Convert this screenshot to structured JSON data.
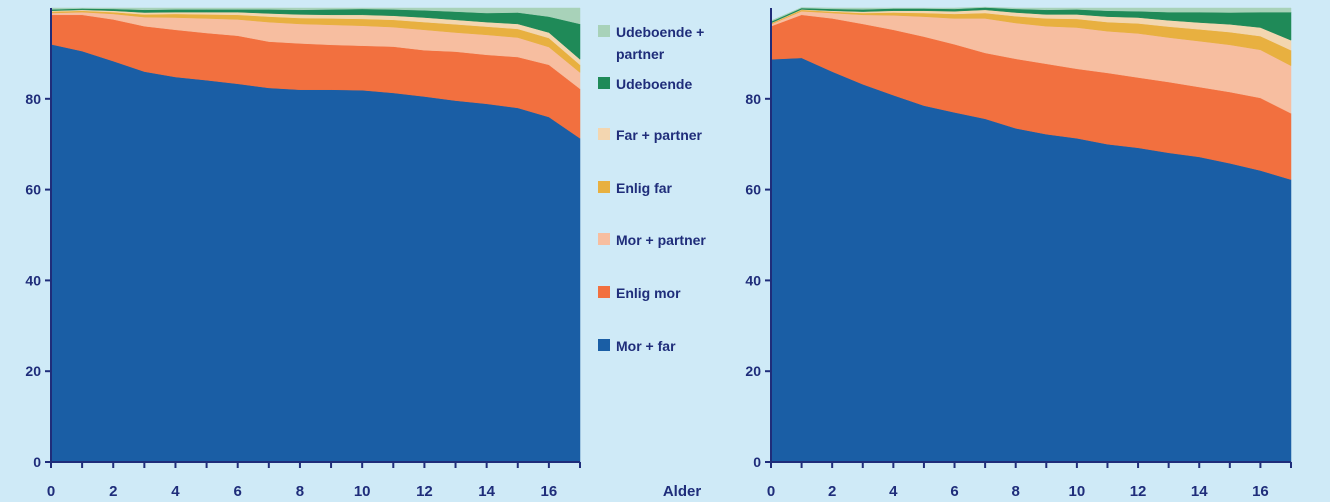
{
  "colors": {
    "background": "#cfeaf7",
    "axis": "#1f2d7a",
    "text": "#1f2d7a"
  },
  "legend": {
    "items": [
      {
        "label": "Udeboende +",
        "label2": "partner",
        "color": "#a8d2b9"
      },
      {
        "label": "Udeboende",
        "color": "#1f8a58"
      },
      {
        "label": "Far + partner",
        "color": "#f3d6b0"
      },
      {
        "label": "Enlig far",
        "color": "#e8b040"
      },
      {
        "label": "Mor + partner",
        "color": "#f7bea0"
      },
      {
        "label": "Enlig mor",
        "color": "#f2703f"
      },
      {
        "label": "Mor + far",
        "color": "#1a5ea5"
      }
    ]
  },
  "chart_data": [
    {
      "type": "area",
      "stacked": true,
      "x": [
        0,
        1,
        2,
        3,
        4,
        5,
        6,
        7,
        8,
        9,
        10,
        11,
        12,
        13,
        14,
        15,
        16,
        17
      ],
      "xticks": [
        0,
        2,
        4,
        6,
        8,
        10,
        12,
        14,
        16
      ],
      "xlabel": "",
      "ylabel": "",
      "yticks": [
        0,
        20,
        40,
        60,
        80
      ],
      "ylim": [
        0,
        100
      ],
      "xlim": [
        0,
        17
      ],
      "series": [
        {
          "name": "Mor + far",
          "color": "#1a5ea5",
          "values": [
            92,
            90.5,
            88.3,
            86,
            84.8,
            84.1,
            83.3,
            82.4,
            82,
            82,
            81.9,
            81.3,
            80.5,
            79.6,
            78.9,
            78,
            76,
            71.3
          ]
        },
        {
          "name": "Enlig mor",
          "color": "#f2703f",
          "values": [
            6.5,
            8,
            9.2,
            10,
            10.4,
            10.4,
            10.6,
            10.2,
            10.2,
            9.9,
            9.8,
            10.2,
            10.2,
            10.8,
            10.8,
            11.2,
            11.5,
            10.9
          ]
        },
        {
          "name": "Mor + partner",
          "color": "#f7bea0",
          "values": [
            0.4,
            0.6,
            1.2,
            2,
            2.7,
            3.2,
            3.6,
            4.3,
            4.3,
            4.4,
            4.4,
            4.3,
            4.5,
            4.2,
            4.4,
            4.3,
            3.9,
            3.6
          ]
        },
        {
          "name": "Enlig far",
          "color": "#e8b040",
          "values": [
            0.3,
            0.3,
            0.4,
            0.6,
            0.8,
            0.9,
            1,
            1.2,
            1.3,
            1.4,
            1.5,
            1.6,
            1.7,
            1.8,
            1.8,
            1.9,
            2,
            1.7
          ]
        },
        {
          "name": "Far + partner",
          "color": "#f3d6b0",
          "values": [
            0.2,
            0.2,
            0.3,
            0.4,
            0.4,
            0.5,
            0.6,
            0.7,
            0.8,
            0.8,
            0.9,
            0.9,
            1,
            1,
            1,
            1.1,
            1.2,
            1.2
          ]
        },
        {
          "name": "Udeboende",
          "color": "#1f8a58",
          "values": [
            0.3,
            0.3,
            0.4,
            0.6,
            0.6,
            0.6,
            0.6,
            0.9,
            1,
            1.2,
            1.3,
            1.4,
            1.6,
            1.8,
            2,
            2.5,
            3.5,
            7.8
          ]
        },
        {
          "name": "Udeboende + partner",
          "color": "#a8d2b9",
          "values": [
            0.3,
            0.1,
            0.2,
            0.4,
            0.3,
            0.3,
            0.3,
            0.3,
            0.4,
            0.3,
            0.2,
            0.3,
            0.5,
            0.8,
            1.1,
            1,
            1.9,
            3.5
          ]
        }
      ]
    },
    {
      "type": "area",
      "stacked": true,
      "x": [
        0,
        1,
        2,
        3,
        4,
        5,
        6,
        7,
        8,
        9,
        10,
        11,
        12,
        13,
        14,
        15,
        16,
        17
      ],
      "xticks": [
        0,
        2,
        4,
        6,
        8,
        10,
        12,
        14,
        16
      ],
      "xlabel": "Alder",
      "ylabel": "",
      "yticks": [
        0,
        20,
        40,
        60,
        80
      ],
      "ylim": [
        0,
        100
      ],
      "xlim": [
        0,
        17
      ],
      "series": [
        {
          "name": "Mor + far",
          "color": "#1a5ea5",
          "values": [
            88.7,
            89,
            86,
            83.2,
            80.8,
            78.5,
            77,
            75.6,
            73.5,
            72.2,
            71.3,
            70,
            69.2,
            68.1,
            67.2,
            65.8,
            64.2,
            62.2
          ]
        },
        {
          "name": "Enlig mor",
          "color": "#f2703f",
          "values": [
            7.3,
            9.5,
            11.7,
            13.3,
            14.4,
            15.2,
            15,
            14.5,
            15.3,
            15.5,
            15.3,
            15.7,
            15.5,
            15.6,
            15.4,
            15.7,
            16,
            14.6
          ]
        },
        {
          "name": "Mor + partner",
          "color": "#f7bea0",
          "values": [
            0.4,
            0.8,
            1.2,
            2,
            3.2,
            4.4,
            5.7,
            7.6,
            7.9,
            8.3,
            9.1,
            9.2,
            9.7,
            9.8,
            10.1,
            10.4,
            10.6,
            10.5
          ]
        },
        {
          "name": "Enlig far",
          "color": "#e8b040",
          "values": [
            0.2,
            0.3,
            0.3,
            0.4,
            0.6,
            0.8,
            1,
            1.2,
            1.5,
            1.7,
            1.9,
            2,
            2.2,
            2.4,
            2.6,
            2.8,
            3,
            3.4
          ]
        },
        {
          "name": "Far + partner",
          "color": "#f3d6b0",
          "values": [
            0.1,
            0.1,
            0.2,
            0.3,
            0.4,
            0.5,
            0.6,
            0.7,
            0.8,
            0.9,
            1,
            1.2,
            1.3,
            1.4,
            1.5,
            1.7,
            1.9,
            2.2
          ]
        },
        {
          "name": "Udeboende",
          "color": "#1f8a58",
          "values": [
            0.3,
            0.3,
            0.4,
            0.5,
            0.5,
            0.5,
            0.5,
            0.5,
            0.8,
            1,
            1.1,
            1.3,
            1.4,
            1.8,
            2.3,
            2.6,
            3.4,
            6.2
          ]
        },
        {
          "name": "Udeboende + partner",
          "color": "#a8d2b9",
          "values": [
            0.2,
            0.1,
            0.2,
            0.3,
            0.1,
            0.1,
            0.2,
            0.1,
            0.2,
            0.4,
            0.3,
            0.6,
            0.7,
            0.9,
            0.9,
            1,
            0.9,
            0.9
          ]
        }
      ]
    }
  ]
}
